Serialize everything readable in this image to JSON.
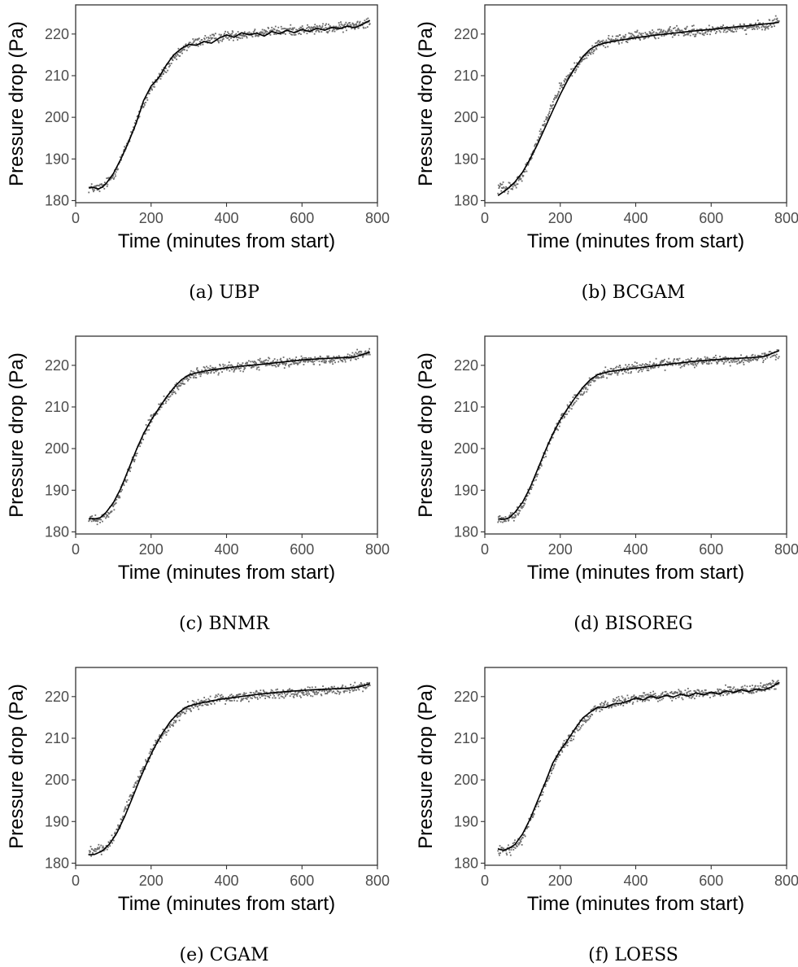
{
  "colors": {
    "points": "#6b6b6b",
    "fit_line": "#000000",
    "frame": "#333333",
    "tick_text": "#4d4d4d"
  },
  "chart_data": [
    {
      "type": "scatter",
      "caption": "(a) UBP",
      "xlabel": "Time (minutes from start)",
      "ylabel": "Pressure drop (Pa)",
      "xlim": [
        0,
        800
      ],
      "ylim": [
        179.5,
        227
      ],
      "xticks": [
        0,
        200,
        400,
        600,
        800
      ],
      "yticks": [
        180,
        190,
        200,
        210,
        220
      ],
      "grid": false,
      "series": [
        {
          "kind": "points",
          "x_range": [
            35,
            780
          ],
          "trend_x": [
            35,
            60,
            75,
            100,
            130,
            160,
            200,
            250,
            300,
            340,
            400,
            500,
            600,
            700,
            780
          ],
          "trend_y": [
            183,
            183,
            183.5,
            186,
            192,
            199,
            207,
            213,
            217.5,
            218.5,
            219.5,
            220.5,
            221,
            221.5,
            223
          ]
        },
        {
          "kind": "line",
          "x": [
            35,
            45,
            60,
            70,
            80,
            100,
            120,
            140,
            160,
            180,
            200,
            220,
            240,
            260,
            280,
            300,
            320,
            340,
            360,
            380,
            400,
            420,
            440,
            460,
            480,
            500,
            520,
            540,
            560,
            580,
            600,
            620,
            640,
            660,
            680,
            700,
            720,
            740,
            760,
            780
          ],
          "y": [
            183,
            183.2,
            182.8,
            183.2,
            184,
            186.5,
            190,
            194,
            198.5,
            204,
            207.5,
            209.5,
            212.5,
            215,
            216.5,
            217.5,
            217.3,
            218.2,
            217.8,
            219,
            219.8,
            219.2,
            220.3,
            219.8,
            220.2,
            219.5,
            220.6,
            220.1,
            220.9,
            220.3,
            221.1,
            220.6,
            221.4,
            220.9,
            221.6,
            221.3,
            221.9,
            221.5,
            222.3,
            223.3
          ]
        }
      ]
    },
    {
      "type": "scatter",
      "caption": "(b) BCGAM",
      "xlabel": "Time (minutes from start)",
      "ylabel": "Pressure drop (Pa)",
      "xlim": [
        0,
        800
      ],
      "ylim": [
        179.5,
        227
      ],
      "xticks": [
        0,
        200,
        400,
        600,
        800
      ],
      "yticks": [
        180,
        190,
        200,
        210,
        220
      ],
      "grid": false,
      "series": [
        {
          "kind": "points",
          "x_range": [
            35,
            780
          ],
          "trend_x": [
            35,
            60,
            75,
            100,
            130,
            160,
            200,
            250,
            300,
            340,
            400,
            500,
            600,
            700,
            780
          ],
          "trend_y": [
            183,
            183,
            183.5,
            186,
            192,
            199,
            207,
            213,
            217.5,
            218.5,
            219.5,
            220.5,
            221,
            221.5,
            223
          ]
        },
        {
          "kind": "line",
          "x": [
            35,
            60,
            80,
            100,
            120,
            140,
            160,
            180,
            200,
            220,
            240,
            260,
            280,
            300,
            320,
            350,
            400,
            450,
            500,
            550,
            600,
            650,
            700,
            750,
            780
          ],
          "y": [
            181.2,
            182.8,
            184.5,
            186.8,
            190,
            193.6,
            197.6,
            201.6,
            205.5,
            209,
            212,
            214.6,
            216.4,
            217.4,
            217.9,
            218.4,
            219.1,
            219.7,
            220.2,
            220.7,
            221.1,
            221.6,
            222,
            222.5,
            222.8
          ]
        }
      ]
    },
    {
      "type": "scatter",
      "caption": "(c) BNMR",
      "xlabel": "Time (minutes from start)",
      "ylabel": "Pressure drop (Pa)",
      "xlim": [
        0,
        800
      ],
      "ylim": [
        179.5,
        227
      ],
      "xticks": [
        0,
        200,
        400,
        600,
        800
      ],
      "yticks": [
        180,
        190,
        200,
        210,
        220
      ],
      "grid": false,
      "series": [
        {
          "kind": "points",
          "x_range": [
            35,
            780
          ],
          "trend_x": [
            35,
            60,
            75,
            100,
            130,
            160,
            200,
            250,
            300,
            340,
            400,
            500,
            600,
            700,
            780
          ],
          "trend_y": [
            183,
            183,
            183.5,
            186,
            192,
            199,
            207,
            213,
            217.5,
            218.5,
            219.5,
            220.5,
            221,
            221.5,
            223
          ]
        },
        {
          "kind": "line",
          "x": [
            35,
            50,
            65,
            80,
            100,
            120,
            140,
            160,
            180,
            200,
            220,
            240,
            260,
            280,
            300,
            330,
            360,
            400,
            450,
            500,
            550,
            600,
            650,
            700,
            740,
            780
          ],
          "y": [
            183.2,
            183.1,
            183.4,
            184.6,
            187,
            190.5,
            195,
            199.5,
            203.6,
            206.8,
            209.6,
            212.3,
            214.6,
            216.5,
            217.7,
            218.4,
            218.9,
            219.4,
            219.9,
            220.3,
            220.8,
            221.3,
            221.6,
            221.8,
            222,
            223.2
          ]
        }
      ]
    },
    {
      "type": "scatter",
      "caption": "(d) BISOREG",
      "xlabel": "Time (minutes from start)",
      "ylabel": "Pressure drop (Pa)",
      "xlim": [
        0,
        800
      ],
      "ylim": [
        179.5,
        227
      ],
      "xticks": [
        0,
        200,
        400,
        600,
        800
      ],
      "yticks": [
        180,
        190,
        200,
        210,
        220
      ],
      "grid": false,
      "series": [
        {
          "kind": "points",
          "x_range": [
            35,
            780
          ],
          "trend_x": [
            35,
            60,
            75,
            100,
            130,
            160,
            200,
            250,
            300,
            340,
            400,
            500,
            600,
            700,
            780
          ],
          "trend_y": [
            183,
            183,
            183.5,
            186,
            192,
            199,
            207,
            213,
            217.5,
            218.5,
            219.5,
            220.5,
            221,
            221.5,
            223
          ]
        },
        {
          "kind": "line",
          "x": [
            35,
            50,
            65,
            80,
            100,
            120,
            140,
            160,
            180,
            200,
            220,
            240,
            260,
            280,
            300,
            330,
            360,
            400,
            450,
            500,
            550,
            600,
            650,
            700,
            740,
            780
          ],
          "y": [
            183.1,
            183,
            183.4,
            184.7,
            187.1,
            190.6,
            195,
            199.4,
            203.5,
            206.9,
            209.7,
            212.3,
            214.7,
            216.6,
            217.8,
            218.5,
            218.9,
            219.3,
            219.9,
            220.4,
            220.9,
            221.3,
            221.6,
            221.8,
            222.1,
            223.5
          ]
        }
      ]
    },
    {
      "type": "scatter",
      "caption": "(e) CGAM",
      "xlabel": "Time (minutes from start)",
      "ylabel": "Pressure drop (Pa)",
      "xlim": [
        0,
        800
      ],
      "ylim": [
        179.5,
        227
      ],
      "xticks": [
        0,
        200,
        400,
        600,
        800
      ],
      "yticks": [
        180,
        190,
        200,
        210,
        220
      ],
      "grid": false,
      "series": [
        {
          "kind": "points",
          "x_range": [
            35,
            780
          ],
          "trend_x": [
            35,
            60,
            75,
            100,
            130,
            160,
            200,
            250,
            300,
            340,
            400,
            500,
            600,
            700,
            780
          ],
          "trend_y": [
            183,
            183,
            183.5,
            186,
            192,
            199,
            207,
            213,
            217.5,
            218.5,
            219.5,
            220.5,
            221,
            221.5,
            223
          ]
        },
        {
          "kind": "line",
          "x": [
            35,
            50,
            70,
            90,
            110,
            130,
            150,
            170,
            190,
            210,
            230,
            250,
            270,
            290,
            310,
            340,
            380,
            420,
            470,
            520,
            570,
            620,
            670,
            720,
            750,
            780
          ],
          "y": [
            182,
            182.1,
            182.9,
            184.6,
            187.4,
            191.2,
            195.6,
            200.1,
            204.3,
            208,
            211.2,
            213.9,
            215.9,
            217.3,
            218,
            218.6,
            219.3,
            219.8,
            220.4,
            220.9,
            221.3,
            221.6,
            221.8,
            222,
            222.3,
            223.1
          ]
        }
      ]
    },
    {
      "type": "scatter",
      "caption": "(f) LOESS",
      "xlabel": "Time (minutes from start)",
      "ylabel": "Pressure drop (Pa)",
      "xlim": [
        0,
        800
      ],
      "ylim": [
        179.5,
        227
      ],
      "xticks": [
        0,
        200,
        400,
        600,
        800
      ],
      "yticks": [
        180,
        190,
        200,
        210,
        220
      ],
      "grid": false,
      "series": [
        {
          "kind": "points",
          "x_range": [
            35,
            780
          ],
          "trend_x": [
            35,
            60,
            75,
            100,
            130,
            160,
            200,
            250,
            300,
            340,
            400,
            500,
            600,
            700,
            780
          ],
          "trend_y": [
            183,
            183,
            183.5,
            186,
            192,
            199,
            207,
            213,
            217.5,
            218.5,
            219.5,
            220.5,
            221,
            221.5,
            223
          ]
        },
        {
          "kind": "line",
          "x": [
            35,
            50,
            65,
            80,
            100,
            120,
            140,
            160,
            180,
            200,
            220,
            240,
            260,
            280,
            300,
            320,
            340,
            360,
            380,
            400,
            420,
            440,
            460,
            480,
            500,
            520,
            540,
            560,
            580,
            600,
            620,
            640,
            660,
            680,
            700,
            720,
            740,
            760,
            780
          ],
          "y": [
            183.4,
            183.1,
            183.6,
            184.5,
            187,
            190.6,
            195,
            199.3,
            204,
            207.1,
            209.6,
            212.4,
            214.9,
            216.3,
            217.5,
            217.4,
            218.2,
            218.4,
            218.9,
            219.7,
            219.2,
            220.1,
            219.6,
            220.3,
            219.9,
            220.6,
            220.1,
            220.9,
            220.4,
            221.1,
            220.6,
            221.4,
            221,
            221.6,
            221.2,
            221.8,
            221.6,
            222.3,
            223.4
          ]
        }
      ]
    }
  ]
}
